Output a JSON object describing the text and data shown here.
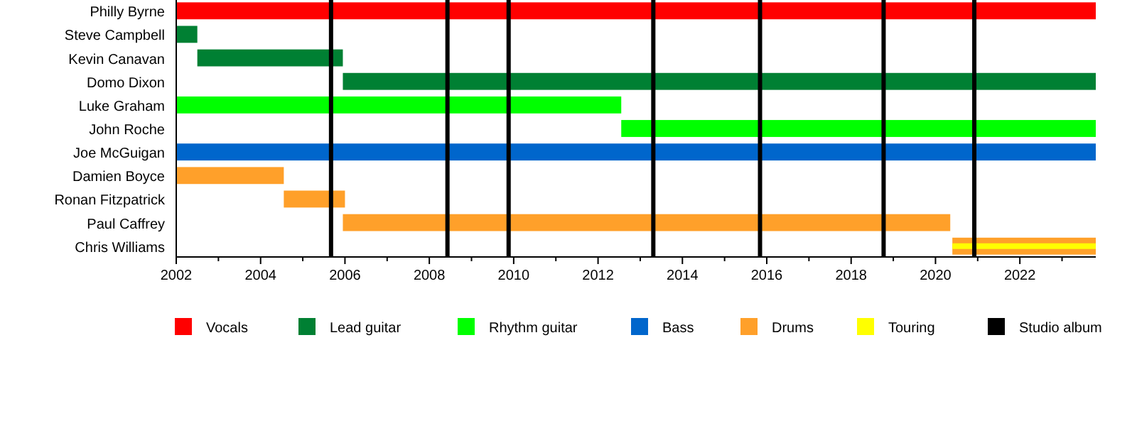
{
  "chart_data": {
    "type": "bar",
    "orientation": "horizontal",
    "categories": [
      "Philly Byrne",
      "Steve Campbell",
      "Kevin Canavan",
      "Domo Dixon",
      "Luke Graham",
      "John Roche",
      "Joe McGuigan",
      "Damien Boyce",
      "Ronan Fitzpatrick",
      "Paul Caffrey",
      "Chris Williams"
    ],
    "series": [
      {
        "name": "Vocals",
        "color": "#ff0000",
        "base": [
          2002,
          null,
          null,
          null,
          null,
          null,
          null,
          null,
          null,
          null,
          null
        ],
        "values": [
          21.8,
          null,
          null,
          null,
          null,
          null,
          null,
          null,
          null,
          null,
          null
        ]
      },
      {
        "name": "Lead guitar",
        "color": "#008033",
        "base": [
          null,
          2002,
          2002.5,
          2005.95,
          null,
          null,
          null,
          null,
          null,
          null,
          null
        ],
        "values": [
          null,
          0.5,
          3.45,
          17.85,
          null,
          null,
          null,
          null,
          null,
          null,
          null
        ]
      },
      {
        "name": "Rhythm guitar",
        "color": "#00ff00",
        "base": [
          null,
          null,
          null,
          null,
          2002,
          2012.55,
          null,
          null,
          null,
          null,
          null
        ],
        "values": [
          null,
          null,
          null,
          null,
          10.55,
          11.25,
          null,
          null,
          null,
          null,
          null
        ]
      },
      {
        "name": "Bass",
        "color": "#0066cc",
        "base": [
          null,
          null,
          null,
          null,
          null,
          null,
          2002,
          null,
          null,
          null,
          null
        ],
        "values": [
          null,
          null,
          null,
          null,
          null,
          null,
          21.8,
          null,
          null,
          null,
          null
        ]
      },
      {
        "name": "Drums",
        "color": "#ffa02a",
        "base": [
          null,
          null,
          null,
          null,
          null,
          null,
          null,
          2002,
          2004.55,
          2005.95,
          2020.4
        ],
        "values": [
          null,
          null,
          null,
          null,
          null,
          null,
          null,
          2.55,
          1.45,
          14.4,
          3.4
        ]
      },
      {
        "name": "Touring",
        "color": "#ffff00",
        "base": [
          null,
          null,
          null,
          null,
          null,
          null,
          null,
          null,
          null,
          null,
          2020.4
        ],
        "values": [
          null,
          null,
          null,
          null,
          null,
          null,
          null,
          null,
          null,
          null,
          3.4
        ]
      }
    ],
    "ref_lines": [
      {
        "axis": "x",
        "value": 2005.67,
        "label": "Studio album",
        "color": "#000000"
      },
      {
        "axis": "x",
        "value": 2008.43,
        "color": "#000000"
      },
      {
        "axis": "x",
        "value": 2009.88,
        "color": "#000000"
      },
      {
        "axis": "x",
        "value": 2013.31,
        "color": "#000000"
      },
      {
        "axis": "x",
        "value": 2015.84,
        "color": "#000000"
      },
      {
        "axis": "x",
        "value": 2018.77,
        "color": "#000000"
      },
      {
        "axis": "x",
        "value": 2020.92,
        "color": "#000000"
      }
    ],
    "xlim": [
      2002,
      2023.8
    ],
    "xticks": [
      2002,
      {
        "value": 2003,
        "label": null
      },
      2004,
      {
        "value": 2005,
        "label": null
      },
      2006,
      {
        "value": 2007,
        "label": null
      },
      2008,
      {
        "value": 2009,
        "label": null
      },
      2010,
      {
        "value": 2011,
        "label": null
      },
      2012,
      {
        "value": 2013,
        "label": null
      },
      2014,
      {
        "value": 2015,
        "label": null
      },
      2016,
      {
        "value": 2017,
        "label": null
      },
      2018,
      {
        "value": 2019,
        "label": null
      },
      2020,
      {
        "value": 2021,
        "label": null
      },
      2022,
      {
        "value": 2023,
        "label": null
      }
    ],
    "legend": "bottom"
  }
}
